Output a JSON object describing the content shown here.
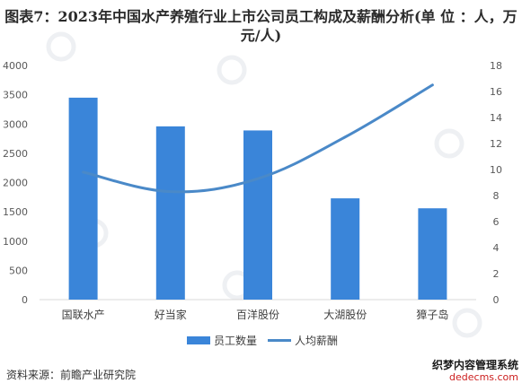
{
  "title": "图表7：2023年中国水产养殖行业上市公司员工构成及薪酬分析(单 位 ：人，万元/人)",
  "source": "资料来源：前瞻产业研究院",
  "watermark": {
    "line1": "织梦内容管理系统",
    "line2": "dedecms.com"
  },
  "colors": {
    "bar": "#3a85d9",
    "line": "#4a89c8",
    "grid": "#d9d9d9"
  },
  "chart_data": {
    "type": "bar",
    "categories": [
      "国联水产",
      "好当家",
      "百洋股份",
      "大湖股份",
      "獐子岛"
    ],
    "series": [
      {
        "name": "员工数量",
        "type": "bar",
        "axis": "left",
        "values": [
          3450,
          2960,
          2890,
          1730,
          1560
        ]
      },
      {
        "name": "人均薪酬",
        "type": "line",
        "axis": "right",
        "values": [
          9.8,
          8.3,
          9.3,
          12.5,
          16.5
        ]
      }
    ],
    "y_left": {
      "lim": [
        0,
        4000
      ],
      "ticks": [
        0,
        500,
        1000,
        1500,
        2000,
        2500,
        3000,
        3500,
        4000
      ]
    },
    "y_right": {
      "lim": [
        0,
        18
      ],
      "ticks": [
        0,
        2,
        4,
        6,
        8,
        10,
        12,
        14,
        16,
        18
      ]
    },
    "legend_position": "bottom",
    "grid": false
  }
}
